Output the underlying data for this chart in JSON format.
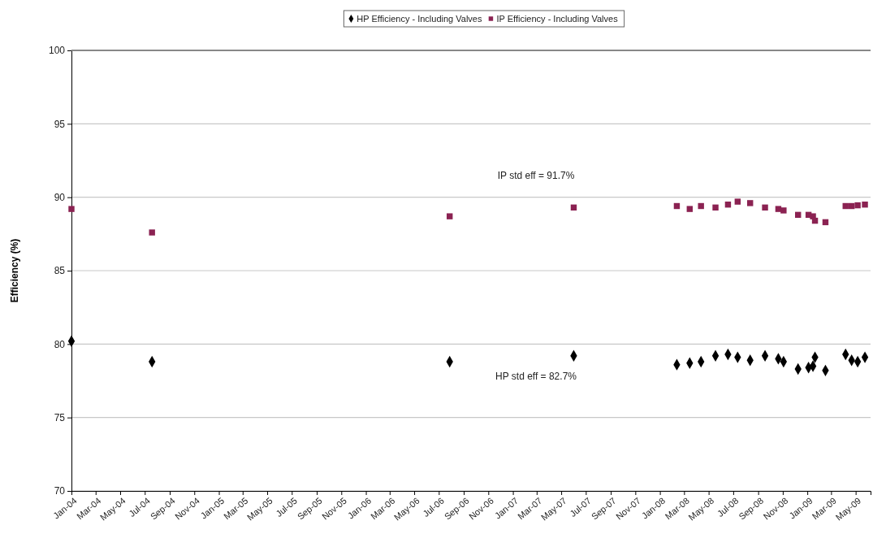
{
  "chart_data": {
    "type": "scatter",
    "ylabel": "Efficiency (%)",
    "legend": "top",
    "grid": "y",
    "xlim": [
      "2004-01-01",
      "2009-06-07"
    ],
    "ylim": [
      70,
      100
    ],
    "yticks": [
      70,
      75,
      80,
      85,
      90,
      95,
      100
    ],
    "xticks": [
      {
        "value": "2004-01-01",
        "label": "Jan-04"
      },
      {
        "value": "2004-03-01",
        "label": "Mar-04"
      },
      {
        "value": "2004-05-01",
        "label": "May-04"
      },
      {
        "value": "2004-07-01",
        "label": "Jul-04"
      },
      {
        "value": "2004-09-01",
        "label": "Sep-04"
      },
      {
        "value": "2004-11-01",
        "label": "Nov-04"
      },
      {
        "value": "2005-01-01",
        "label": "Jan-05"
      },
      {
        "value": "2005-03-01",
        "label": "Mar-05"
      },
      {
        "value": "2005-05-01",
        "label": "May-05"
      },
      {
        "value": "2005-07-01",
        "label": "Jul-05"
      },
      {
        "value": "2005-09-01",
        "label": "Sep-05"
      },
      {
        "value": "2005-11-01",
        "label": "Nov-05"
      },
      {
        "value": "2006-01-01",
        "label": "Jan-06"
      },
      {
        "value": "2006-03-01",
        "label": "Mar-06"
      },
      {
        "value": "2006-05-01",
        "label": "May-06"
      },
      {
        "value": "2006-07-01",
        "label": "Jul-06"
      },
      {
        "value": "2006-09-01",
        "label": "Sep-06"
      },
      {
        "value": "2006-11-01",
        "label": "Nov-06"
      },
      {
        "value": "2007-01-01",
        "label": "Jan-07"
      },
      {
        "value": "2007-03-01",
        "label": "Mar-07"
      },
      {
        "value": "2007-05-01",
        "label": "May-07"
      },
      {
        "value": "2007-07-01",
        "label": "Jul-07"
      },
      {
        "value": "2007-09-01",
        "label": "Sep-07"
      },
      {
        "value": "2007-11-01",
        "label": "Nov-07"
      },
      {
        "value": "2008-01-01",
        "label": "Jan-08"
      },
      {
        "value": "2008-03-01",
        "label": "Mar-08"
      },
      {
        "value": "2008-05-01",
        "label": "May-08"
      },
      {
        "value": "2008-07-01",
        "label": "Jul-08"
      },
      {
        "value": "2008-09-01",
        "label": "Sep-08"
      },
      {
        "value": "2008-11-01",
        "label": "Nov-08"
      },
      {
        "value": "2009-01-01",
        "label": "Jan-09"
      },
      {
        "value": "2009-03-01",
        "label": "Mar-09"
      },
      {
        "value": "2009-05-01",
        "label": "May-09"
      }
    ],
    "annotations": [
      "IP std eff = 91.7%",
      "HP std eff = 82.7%"
    ],
    "series": [
      {
        "name": "HP Efficiency - Including Valves",
        "color": "#000000",
        "marker": "diamond",
        "x": [
          "2004-01-01",
          "2004-07-19",
          "2006-07-28",
          "2007-06-01",
          "2008-02-12",
          "2008-03-15",
          "2008-04-12",
          "2008-05-18",
          "2008-06-18",
          "2008-07-12",
          "2008-08-12",
          "2008-09-18",
          "2008-10-21",
          "2008-11-03",
          "2008-12-09",
          "2009-01-04",
          "2009-01-15",
          "2009-01-20",
          "2009-02-15",
          "2009-04-06",
          "2009-04-21",
          "2009-05-06",
          "2009-05-24"
        ],
        "values": [
          80.2,
          78.8,
          78.8,
          79.2,
          78.6,
          78.7,
          78.8,
          79.2,
          79.3,
          79.1,
          78.9,
          79.2,
          79.0,
          78.8,
          78.3,
          78.4,
          78.5,
          79.1,
          78.2,
          79.3,
          78.9,
          78.8,
          79.1
        ]
      },
      {
        "name": "IP Efficiency - Including Valves",
        "color": "#8b2252",
        "marker": "square",
        "x": [
          "2004-01-01",
          "2004-07-19",
          "2006-07-28",
          "2007-06-01",
          "2008-02-12",
          "2008-03-15",
          "2008-04-12",
          "2008-05-18",
          "2008-06-18",
          "2008-07-12",
          "2008-08-12",
          "2008-09-18",
          "2008-10-21",
          "2008-11-03",
          "2008-12-09",
          "2009-01-04",
          "2009-01-15",
          "2009-01-20",
          "2009-02-15",
          "2009-04-06",
          "2009-04-21",
          "2009-05-06",
          "2009-05-24"
        ],
        "values": [
          89.2,
          87.6,
          88.7,
          89.3,
          89.4,
          89.2,
          89.4,
          89.3,
          89.5,
          89.7,
          89.6,
          89.3,
          89.2,
          89.1,
          88.8,
          88.8,
          88.7,
          88.4,
          88.3,
          89.4,
          89.4,
          89.45,
          89.5
        ]
      }
    ]
  }
}
